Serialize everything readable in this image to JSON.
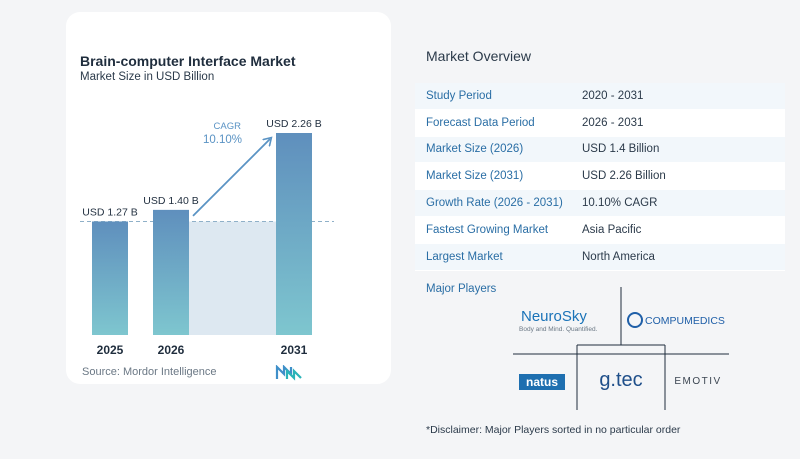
{
  "chart_data": {
    "type": "bar",
    "title": "Brain-computer Interface Market",
    "subtitle": "Market Size in USD Billion",
    "categories": [
      "2025",
      "2026",
      "2031"
    ],
    "values": [
      1.27,
      1.4,
      2.26
    ],
    "data_labels": [
      "USD 1.27 B",
      "USD 1.40 B",
      "USD 2.26 B"
    ],
    "cagr_label": "CAGR",
    "cagr_value": "10.10%",
    "ylim": [
      0,
      2.26
    ],
    "grid": false,
    "colors": {
      "bar_top": "#5f8fbd",
      "bar_bottom": "#7ec6cf",
      "band": "#dde8f1",
      "arrow": "#5a93c4",
      "cagr": "#5a93c4"
    }
  },
  "source": "Source:  Mordor Intelligence",
  "logo": "mordor-intelligence-logo",
  "overview": {
    "title": "Market Overview",
    "rows": [
      {
        "label": "Study Period",
        "value": "2020 - 2031"
      },
      {
        "label": "Forecast Data Period",
        "value": "2026 - 2031"
      },
      {
        "label": "Market Size (2026)",
        "value": "USD 1.4 Billion"
      },
      {
        "label": "Market Size (2031)",
        "value": "USD 2.26 Billion"
      },
      {
        "label": "Growth Rate (2026 - 2031)",
        "value": "10.10% CAGR"
      },
      {
        "label": "Fastest Growing Market",
        "value": "Asia Pacific"
      },
      {
        "label": "Largest Market",
        "value": "North America"
      }
    ],
    "players_title": "Major Players",
    "players": {
      "neurosky": "NeuroSky",
      "neurosky_tagline": "Body and Mind. Quantified.",
      "compumedics": "COMPUMEDICS",
      "natus": "natus",
      "gtec": "g.tec",
      "emotiv": "EMOTIV"
    },
    "disclaimer": "*Disclaimer: Major Players sorted in no particular order"
  }
}
